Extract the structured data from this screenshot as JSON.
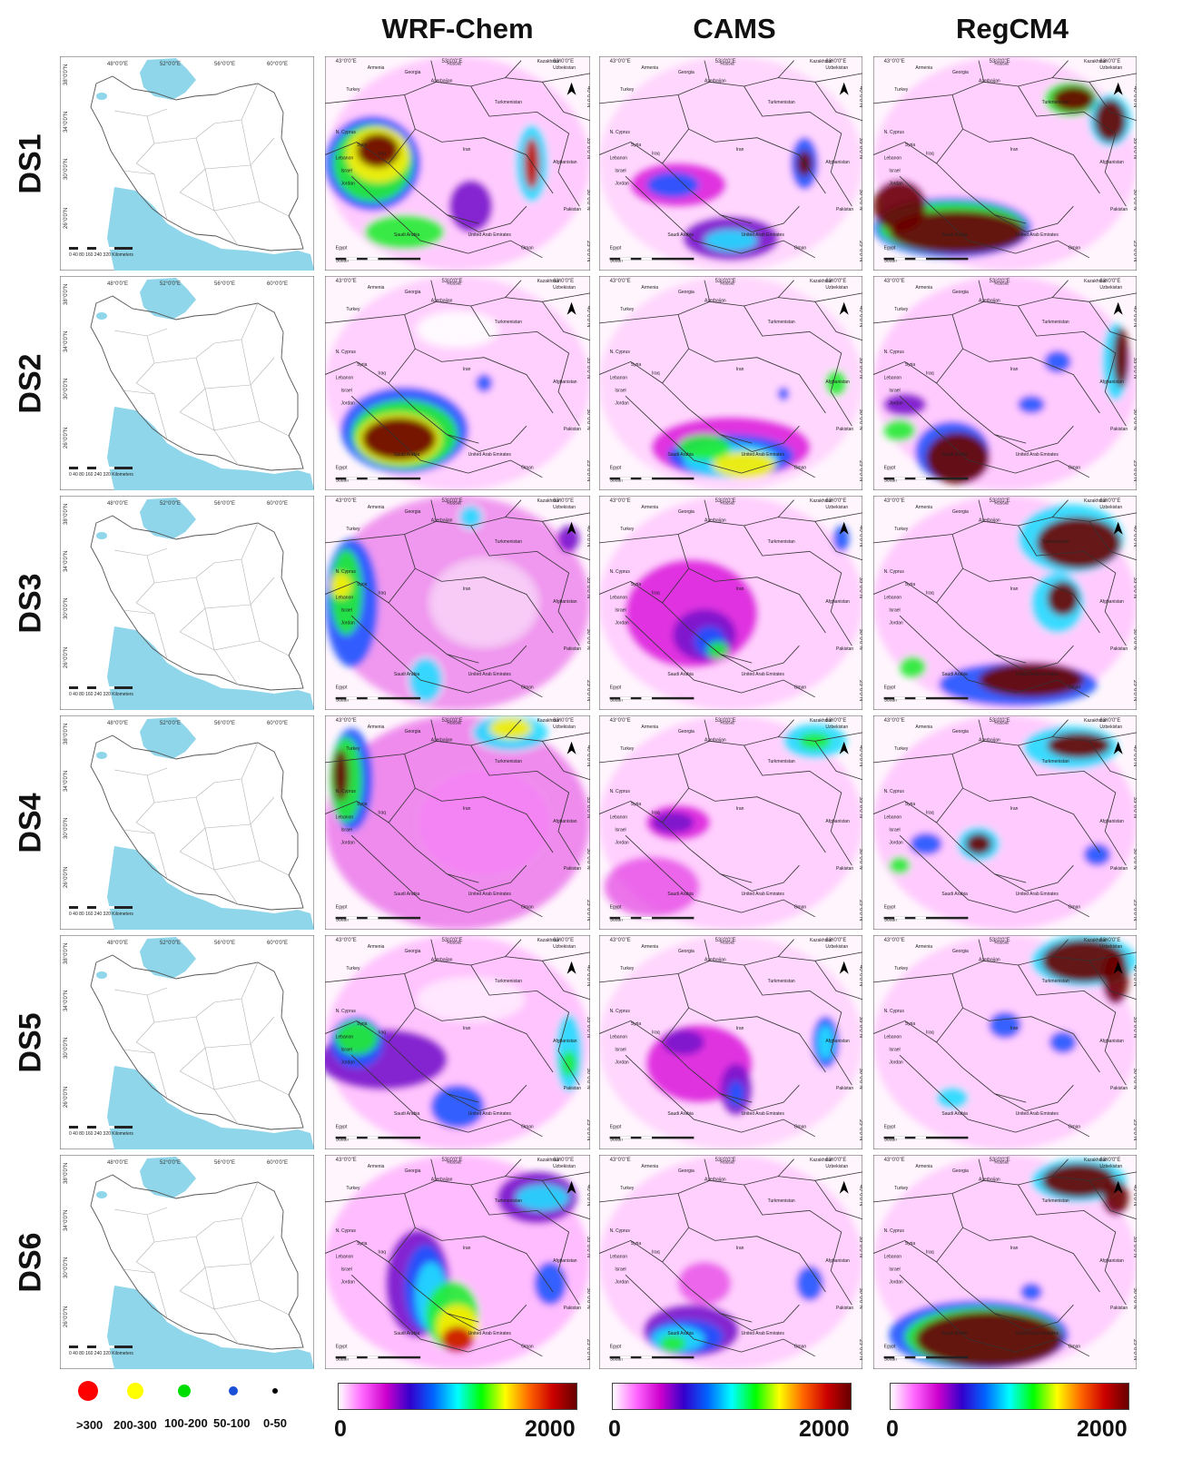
{
  "columns": [
    "WRF-Chem",
    "CAMS",
    "RegCM4"
  ],
  "rows": [
    "DS1",
    "DS2",
    "DS3",
    "DS4",
    "DS5",
    "DS6"
  ],
  "station_map": {
    "lon_labels": [
      "48°0'0\"E",
      "52°0'0\"E",
      "56°0'0\"E",
      "60°0'0\"E"
    ],
    "lat_labels": [
      "38°0'0\"N",
      "34°0'0\"N",
      "30°0'0\"N",
      "26°0'0\"N"
    ],
    "scale_label": "0 40 80  160  240  320 Kilometers"
  },
  "model_map": {
    "lon_labels": [
      "43°0'0\"E",
      "53°0'0\"E",
      "63°0'0\"E"
    ],
    "lat_labels": [
      "40°0'0\"N",
      "35°0'0\"N",
      "30°0'0\"N",
      "25°0'0\"N"
    ],
    "country_labels": [
      "Russia",
      "Kazakhstan",
      "Georgia",
      "Armenia",
      "Azerbaijan",
      "Uzbekistan",
      "Turkey",
      "Turkmenistan",
      "N. Cyprus",
      "Syria",
      "Lebanon",
      "Iraq",
      "Jordan",
      "Iran",
      "Afghanistan",
      "Pakistan",
      "Saudi Arabia",
      "United Arab Emirates",
      "Oman",
      "Egypt",
      "Sudan",
      "Israel"
    ],
    "north_arrow": "north-arrow"
  },
  "colorbar": {
    "min_label": "0",
    "max_label": "2000",
    "stops": [
      "#ffffff",
      "#ff66ff",
      "#cc00cc",
      "#3300cc",
      "#0066ff",
      "#00ffff",
      "#00ff00",
      "#ffff00",
      "#ff6600",
      "#cc0000",
      "#660000"
    ]
  },
  "legend": [
    {
      "label": ">300",
      "color": "#ff0000"
    },
    {
      "label": "200-300",
      "color": "#ffff00"
    },
    {
      "label": "100-200",
      "color": "#00dd00"
    },
    {
      "label": "50-100",
      "color": "#1a4fd6"
    },
    {
      "label": "0-50",
      "color": "#000000"
    }
  ],
  "colors": {
    "water": "#8fd6ea",
    "border": "#333333",
    "province": "#b0b0b0",
    "panel_border": "#555555"
  }
}
